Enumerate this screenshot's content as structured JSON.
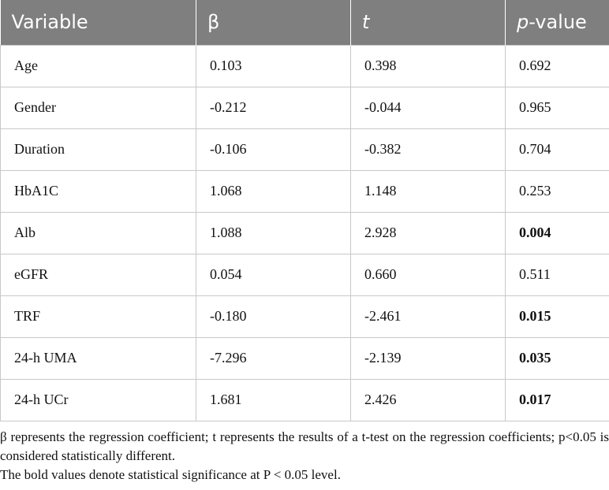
{
  "table": {
    "header": [
      {
        "text": "Variable"
      },
      {
        "text": "β"
      },
      {
        "text": "t",
        "italic": true
      },
      {
        "parts": [
          {
            "text": "p",
            "italic": true
          },
          {
            "text": "-value"
          }
        ]
      }
    ],
    "rows": [
      [
        {
          "text": "Age"
        },
        {
          "text": "0.103"
        },
        {
          "text": "0.398"
        },
        {
          "text": "0.692"
        }
      ],
      [
        {
          "text": "Gender"
        },
        {
          "text": "-0.212"
        },
        {
          "text": "-0.044"
        },
        {
          "text": "0.965"
        }
      ],
      [
        {
          "text": "Duration"
        },
        {
          "text": "-0.106"
        },
        {
          "text": "-0.382"
        },
        {
          "text": "0.704"
        }
      ],
      [
        {
          "text": "HbA1C"
        },
        {
          "text": "1.068"
        },
        {
          "text": "1.148"
        },
        {
          "text": "0.253"
        }
      ],
      [
        {
          "text": "Alb"
        },
        {
          "text": "1.088"
        },
        {
          "text": "2.928"
        },
        {
          "text": "0.004",
          "bold": true
        }
      ],
      [
        {
          "text": "eGFR"
        },
        {
          "text": "0.054"
        },
        {
          "text": "0.660"
        },
        {
          "text": "0.511"
        }
      ],
      [
        {
          "text": "TRF"
        },
        {
          "text": "-0.180"
        },
        {
          "text": "-2.461"
        },
        {
          "text": "0.015",
          "bold": true
        }
      ],
      [
        {
          "text": "24-h UMA"
        },
        {
          "text": "-7.296"
        },
        {
          "text": "-2.139"
        },
        {
          "text": "0.035",
          "bold": true
        }
      ],
      [
        {
          "text": "24-h UCr"
        },
        {
          "text": "1.681"
        },
        {
          "text": "2.426"
        },
        {
          "text": "0.017",
          "bold": true
        }
      ]
    ]
  },
  "footnotes": [
    "β represents the regression coefficient; t represents the results of a t-test on the regression coefficients; p<0.05 is considered statistically different.",
    "The bold values denote statistical significance at P < 0.05 level."
  ]
}
